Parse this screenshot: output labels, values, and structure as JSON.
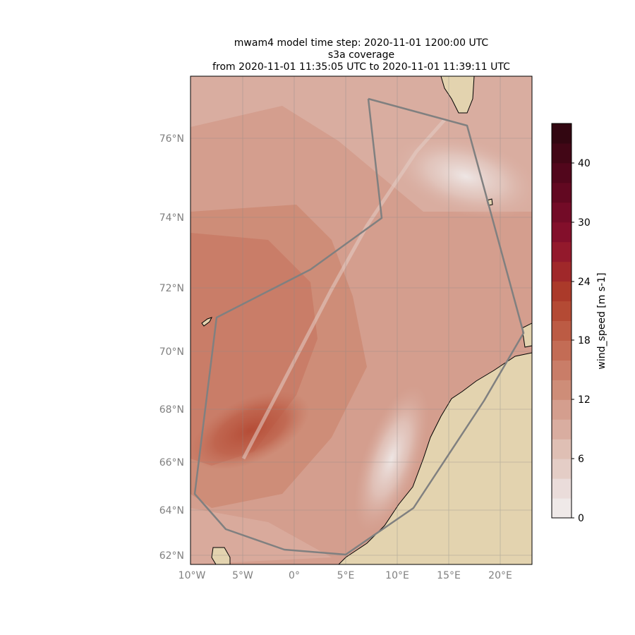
{
  "title": {
    "line1": "mwam4 model time step: 2020-11-01 1200:00 UTC",
    "line2": "s3a coverage",
    "line3": "from 2020-11-01 11:35:05 UTC to 2020-11-01 11:39:11 UTC"
  },
  "map": {
    "lat_ticks": [
      "76°N",
      "74°N",
      "72°N",
      "70°N",
      "68°N",
      "66°N",
      "64°N",
      "62°N"
    ],
    "lon_ticks": [
      "10°W",
      "5°W",
      "0°",
      "5°E",
      "10°E",
      "15°E",
      "20°E"
    ],
    "land_color": "#e3d3af",
    "track_color": "#808080",
    "satellite": "s3a",
    "model": "mwam4",
    "model_domain_outline": "grey polygon",
    "satellite_track": "diagonal pass SW to NE"
  },
  "colorbar": {
    "label": "wind_speed [m s-1]",
    "ticks": [
      "0",
      "6",
      "12",
      "18",
      "24",
      "30",
      "40"
    ],
    "range": [
      0,
      46
    ],
    "colors": [
      "#efe9e8",
      "#eadcda",
      "#e4cdc6",
      "#dfbfb4",
      "#d9ada0",
      "#d49e8e",
      "#ce8d78",
      "#c97d68",
      "#c36c55",
      "#bc5b44",
      "#b44a34",
      "#ab3a2a",
      "#a0282a",
      "#93192c",
      "#830f2b",
      "#730b27",
      "#620821",
      "#52061c",
      "#420616",
      "#320611"
    ]
  }
}
